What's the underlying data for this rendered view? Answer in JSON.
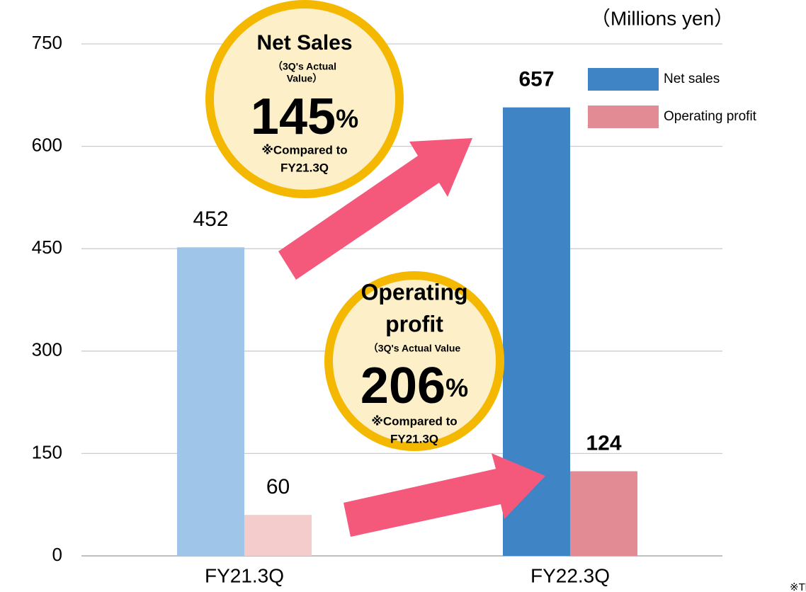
{
  "chart_data": {
    "type": "bar",
    "unit_label": "（Millions  yen）",
    "categories": [
      "FY21.3Q",
      "FY22.3Q"
    ],
    "series": [
      {
        "name": "Net sales",
        "color": "#3f85c6",
        "point_colors": [
          "#9fc5e8",
          "#3f85c6"
        ],
        "values": [
          452,
          657
        ]
      },
      {
        "name": "Operating profit",
        "color": "#e28b95",
        "point_colors": [
          "#f4cccc",
          "#e28b95"
        ],
        "values": [
          60,
          124
        ]
      }
    ],
    "bold_value_labels": [
      false,
      true
    ],
    "ylim": [
      0,
      750
    ],
    "yticks": [
      0,
      150,
      300,
      450,
      600,
      750
    ],
    "grid": true,
    "annotations": [
      {
        "title_lines": [
          "Net Sales"
        ],
        "subtitle_lines": [
          "（3Q's Actual",
          "Value）"
        ],
        "value": 145,
        "unit": "%",
        "note_lines": [
          "※Compared to",
          "FY21.3Q"
        ]
      },
      {
        "title_lines": [
          "Operating",
          "profit"
        ],
        "subtitle_lines": [
          "（3Q's Actual Value"
        ],
        "value": 206,
        "unit": "%",
        "note_lines": [
          "※Compared to",
          "FY21.3Q"
        ]
      }
    ],
    "footnote": "※The above"
  }
}
